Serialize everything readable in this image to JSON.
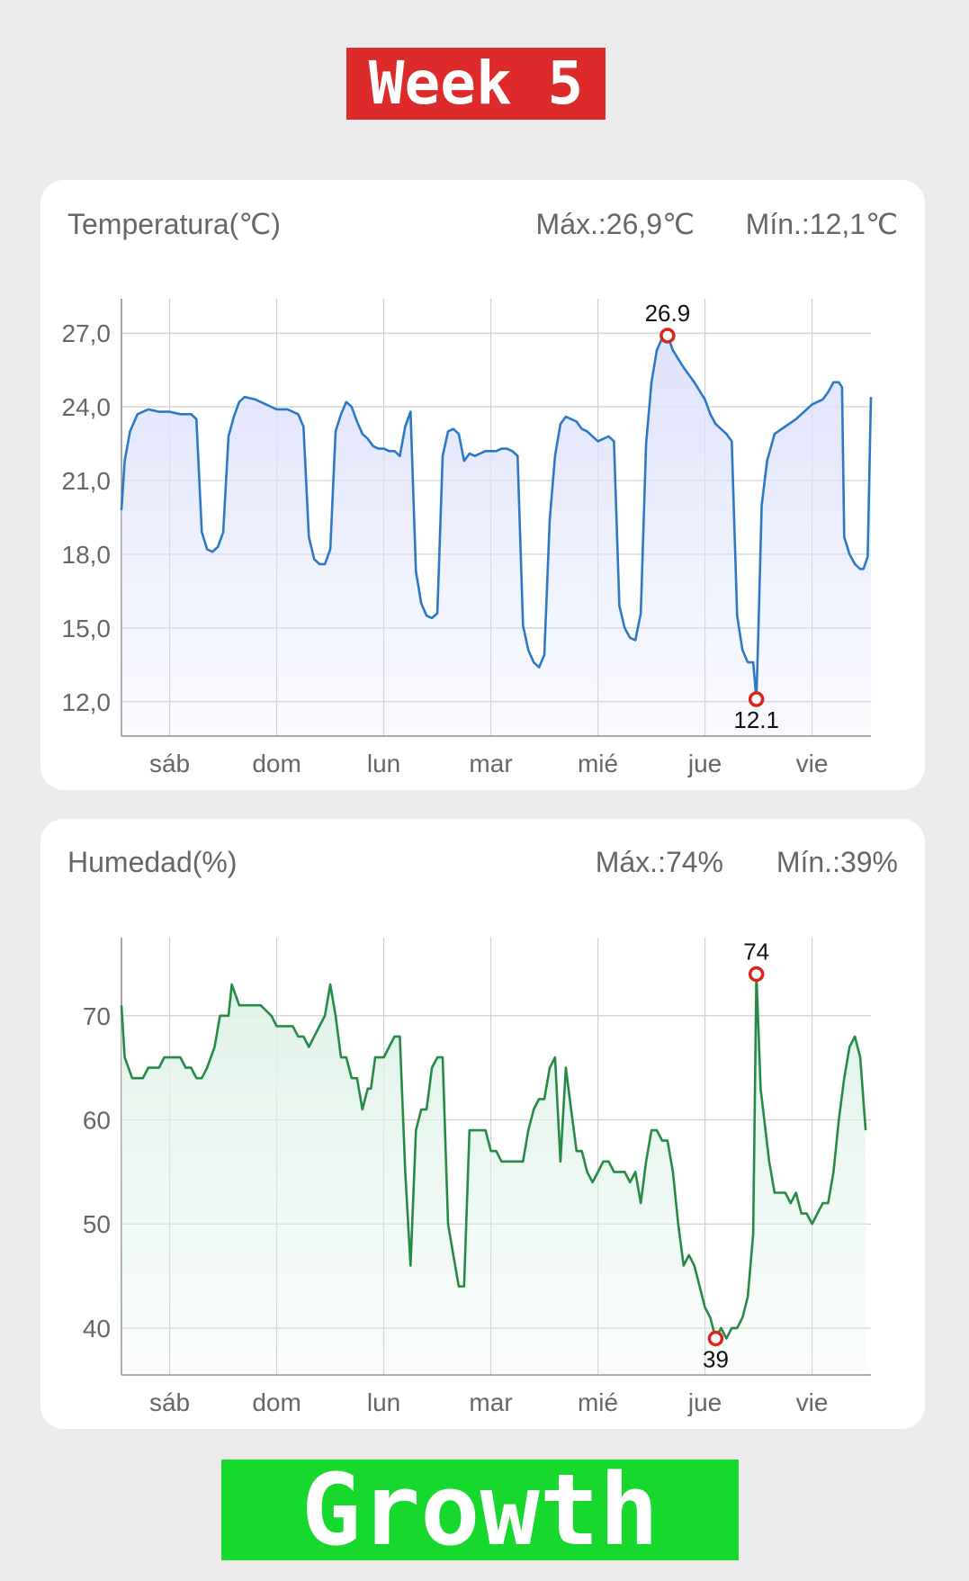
{
  "header": {
    "banner_text": "Week 5",
    "banner_color": "#dd2a2a"
  },
  "footer": {
    "banner_text": "Growth",
    "banner_color": "#17d82c"
  },
  "charts": {
    "temperature": {
      "title": "Temperatura(℃)",
      "max_label": "Máx.:26,9℃",
      "min_label": "Mín.:12,1℃"
    },
    "humidity": {
      "title": "Humedad(%)",
      "max_label": "Máx.:74%",
      "min_label": "Mín.:39%"
    }
  },
  "chart_data": [
    {
      "type": "area",
      "title": "Temperatura(℃)",
      "line_color": "#2b78c4",
      "fill_color": "#dfe3fb",
      "x_categories": [
        "sáb",
        "dom",
        "lun",
        "mar",
        "mié",
        "jue",
        "vie"
      ],
      "x_range": [
        -0.45,
        6.55
      ],
      "ylim": [
        10.6,
        28.4
      ],
      "y_ticks": [
        12,
        15,
        18,
        21,
        24,
        27
      ],
      "y_tick_labels": [
        "12,0",
        "15,0",
        "18,0",
        "21,0",
        "24,0",
        "27,0"
      ],
      "grid": true,
      "series": [
        {
          "points": [
            [
              -0.45,
              19.8
            ],
            [
              -0.42,
              21.8
            ],
            [
              -0.37,
              23.0
            ],
            [
              -0.3,
              23.7
            ],
            [
              -0.2,
              23.9
            ],
            [
              -0.1,
              23.8
            ],
            [
              0.0,
              23.8
            ],
            [
              0.1,
              23.7
            ],
            [
              0.2,
              23.7
            ],
            [
              0.25,
              23.5
            ],
            [
              0.3,
              18.9
            ],
            [
              0.35,
              18.2
            ],
            [
              0.4,
              18.1
            ],
            [
              0.45,
              18.3
            ],
            [
              0.5,
              18.9
            ],
            [
              0.55,
              22.8
            ],
            [
              0.6,
              23.6
            ],
            [
              0.65,
              24.2
            ],
            [
              0.7,
              24.4
            ],
            [
              0.8,
              24.3
            ],
            [
              0.9,
              24.1
            ],
            [
              1.0,
              23.9
            ],
            [
              1.1,
              23.9
            ],
            [
              1.2,
              23.7
            ],
            [
              1.25,
              23.2
            ],
            [
              1.3,
              18.7
            ],
            [
              1.35,
              17.8
            ],
            [
              1.4,
              17.6
            ],
            [
              1.45,
              17.6
            ],
            [
              1.5,
              18.2
            ],
            [
              1.55,
              23.0
            ],
            [
              1.6,
              23.7
            ],
            [
              1.65,
              24.2
            ],
            [
              1.7,
              24.0
            ],
            [
              1.75,
              23.4
            ],
            [
              1.8,
              22.9
            ],
            [
              1.85,
              22.7
            ],
            [
              1.9,
              22.4
            ],
            [
              1.95,
              22.3
            ],
            [
              2.0,
              22.3
            ],
            [
              2.05,
              22.2
            ],
            [
              2.1,
              22.2
            ],
            [
              2.15,
              22.0
            ],
            [
              2.2,
              23.2
            ],
            [
              2.25,
              23.8
            ],
            [
              2.3,
              17.3
            ],
            [
              2.35,
              16.0
            ],
            [
              2.4,
              15.5
            ],
            [
              2.45,
              15.4
            ],
            [
              2.5,
              15.6
            ],
            [
              2.55,
              22.0
            ],
            [
              2.6,
              23.0
            ],
            [
              2.65,
              23.1
            ],
            [
              2.7,
              22.9
            ],
            [
              2.75,
              21.8
            ],
            [
              2.8,
              22.1
            ],
            [
              2.85,
              22.0
            ],
            [
              2.9,
              22.1
            ],
            [
              2.95,
              22.2
            ],
            [
              3.0,
              22.2
            ],
            [
              3.05,
              22.2
            ],
            [
              3.1,
              22.3
            ],
            [
              3.15,
              22.3
            ],
            [
              3.2,
              22.2
            ],
            [
              3.25,
              22.0
            ],
            [
              3.3,
              15.1
            ],
            [
              3.35,
              14.1
            ],
            [
              3.4,
              13.6
            ],
            [
              3.45,
              13.4
            ],
            [
              3.5,
              13.9
            ],
            [
              3.55,
              19.4
            ],
            [
              3.6,
              22.0
            ],
            [
              3.65,
              23.3
            ],
            [
              3.7,
              23.6
            ],
            [
              3.8,
              23.4
            ],
            [
              3.85,
              23.1
            ],
            [
              3.9,
              23.0
            ],
            [
              3.95,
              22.8
            ],
            [
              4.0,
              22.6
            ],
            [
              4.1,
              22.8
            ],
            [
              4.15,
              22.6
            ],
            [
              4.2,
              15.9
            ],
            [
              4.25,
              15.0
            ],
            [
              4.3,
              14.6
            ],
            [
              4.35,
              14.5
            ],
            [
              4.4,
              15.6
            ],
            [
              4.45,
              22.5
            ],
            [
              4.5,
              25.0
            ],
            [
              4.55,
              26.3
            ],
            [
              4.6,
              26.8
            ],
            [
              4.65,
              26.9
            ],
            [
              4.7,
              26.3
            ],
            [
              4.8,
              25.6
            ],
            [
              4.9,
              25.0
            ],
            [
              5.0,
              24.3
            ],
            [
              5.05,
              23.7
            ],
            [
              5.1,
              23.3
            ],
            [
              5.2,
              22.9
            ],
            [
              5.25,
              22.6
            ],
            [
              5.3,
              15.5
            ],
            [
              5.35,
              14.1
            ],
            [
              5.4,
              13.6
            ],
            [
              5.45,
              13.6
            ],
            [
              5.48,
              12.1
            ],
            [
              5.5,
              15.0
            ],
            [
              5.53,
              20.0
            ],
            [
              5.58,
              21.8
            ],
            [
              5.65,
              22.9
            ],
            [
              5.75,
              23.2
            ],
            [
              5.85,
              23.5
            ],
            [
              5.95,
              23.9
            ],
            [
              6.0,
              24.1
            ],
            [
              6.05,
              24.2
            ],
            [
              6.1,
              24.3
            ],
            [
              6.15,
              24.6
            ],
            [
              6.2,
              25.0
            ],
            [
              6.25,
              25.0
            ],
            [
              6.28,
              24.8
            ],
            [
              6.3,
              18.7
            ],
            [
              6.35,
              18.0
            ],
            [
              6.4,
              17.6
            ],
            [
              6.45,
              17.4
            ],
            [
              6.48,
              17.4
            ],
            [
              6.52,
              17.9
            ],
            [
              6.55,
              24.4
            ]
          ],
          "markers": [
            {
              "x": 4.65,
              "y": 26.9,
              "label": "26.9",
              "position": "above"
            },
            {
              "x": 5.48,
              "y": 12.1,
              "label": "12.1",
              "position": "below"
            }
          ]
        }
      ]
    },
    {
      "type": "area",
      "title": "Humedad(%)",
      "line_color": "#258a45",
      "fill_color": "#dff2e8",
      "x_categories": [
        "sáb",
        "dom",
        "lun",
        "mar",
        "mié",
        "jue",
        "vie"
      ],
      "x_range": [
        -0.45,
        6.55
      ],
      "ylim": [
        35.5,
        77.5
      ],
      "y_ticks": [
        40,
        50,
        60,
        70
      ],
      "y_tick_labels": [
        "40",
        "50",
        "60",
        "70"
      ],
      "grid": true,
      "series": [
        {
          "points": [
            [
              -0.45,
              71
            ],
            [
              -0.42,
              66
            ],
            [
              -0.35,
              64
            ],
            [
              -0.3,
              64
            ],
            [
              -0.25,
              64
            ],
            [
              -0.2,
              65
            ],
            [
              -0.1,
              65
            ],
            [
              -0.05,
              66
            ],
            [
              0.1,
              66
            ],
            [
              0.15,
              65
            ],
            [
              0.2,
              65
            ],
            [
              0.25,
              64
            ],
            [
              0.3,
              64
            ],
            [
              0.35,
              65
            ],
            [
              0.42,
              67
            ],
            [
              0.47,
              70
            ],
            [
              0.55,
              70
            ],
            [
              0.58,
              73
            ],
            [
              0.65,
              71
            ],
            [
              0.75,
              71
            ],
            [
              0.85,
              71
            ],
            [
              0.95,
              70
            ],
            [
              1.0,
              69
            ],
            [
              1.05,
              69
            ],
            [
              1.15,
              69
            ],
            [
              1.2,
              68
            ],
            [
              1.25,
              68
            ],
            [
              1.3,
              67
            ],
            [
              1.35,
              68
            ],
            [
              1.4,
              69
            ],
            [
              1.45,
              70
            ],
            [
              1.5,
              73
            ],
            [
              1.55,
              70
            ],
            [
              1.6,
              66
            ],
            [
              1.65,
              66
            ],
            [
              1.7,
              64
            ],
            [
              1.75,
              64
            ],
            [
              1.8,
              61
            ],
            [
              1.85,
              63
            ],
            [
              1.88,
              63
            ],
            [
              1.92,
              66
            ],
            [
              2.0,
              66
            ],
            [
              2.05,
              67
            ],
            [
              2.1,
              68
            ],
            [
              2.15,
              68
            ],
            [
              2.2,
              55
            ],
            [
              2.25,
              46
            ],
            [
              2.3,
              59
            ],
            [
              2.35,
              61
            ],
            [
              2.4,
              61
            ],
            [
              2.45,
              65
            ],
            [
              2.5,
              66
            ],
            [
              2.55,
              66
            ],
            [
              2.6,
              50
            ],
            [
              2.65,
              47
            ],
            [
              2.7,
              44
            ],
            [
              2.75,
              44
            ],
            [
              2.8,
              59
            ],
            [
              2.85,
              59
            ],
            [
              2.9,
              59
            ],
            [
              2.95,
              59
            ],
            [
              3.0,
              57
            ],
            [
              3.05,
              57
            ],
            [
              3.1,
              56
            ],
            [
              3.15,
              56
            ],
            [
              3.2,
              56
            ],
            [
              3.25,
              56
            ],
            [
              3.3,
              56
            ],
            [
              3.35,
              59
            ],
            [
              3.4,
              61
            ],
            [
              3.45,
              62
            ],
            [
              3.5,
              62
            ],
            [
              3.55,
              65
            ],
            [
              3.6,
              66
            ],
            [
              3.65,
              56
            ],
            [
              3.7,
              65
            ],
            [
              3.75,
              61
            ],
            [
              3.8,
              57
            ],
            [
              3.85,
              57
            ],
            [
              3.9,
              55
            ],
            [
              3.95,
              54
            ],
            [
              4.0,
              55
            ],
            [
              4.05,
              56
            ],
            [
              4.1,
              56
            ],
            [
              4.15,
              55
            ],
            [
              4.2,
              55
            ],
            [
              4.25,
              55
            ],
            [
              4.3,
              54
            ],
            [
              4.35,
              55
            ],
            [
              4.4,
              52
            ],
            [
              4.45,
              56
            ],
            [
              4.5,
              59
            ],
            [
              4.55,
              59
            ],
            [
              4.6,
              58
            ],
            [
              4.65,
              58
            ],
            [
              4.7,
              55
            ],
            [
              4.75,
              50
            ],
            [
              4.8,
              46
            ],
            [
              4.85,
              47
            ],
            [
              4.9,
              46
            ],
            [
              4.95,
              44
            ],
            [
              5.0,
              42
            ],
            [
              5.05,
              41
            ],
            [
              5.1,
              39
            ],
            [
              5.15,
              40
            ],
            [
              5.2,
              39
            ],
            [
              5.25,
              40
            ],
            [
              5.3,
              40
            ],
            [
              5.35,
              41
            ],
            [
              5.4,
              43
            ],
            [
              5.45,
              49
            ],
            [
              5.48,
              74
            ],
            [
              5.52,
              63
            ],
            [
              5.6,
              56
            ],
            [
              5.65,
              53
            ],
            [
              5.7,
              53
            ],
            [
              5.75,
              53
            ],
            [
              5.8,
              52
            ],
            [
              5.85,
              53
            ],
            [
              5.9,
              51
            ],
            [
              5.95,
              51
            ],
            [
              6.0,
              50
            ],
            [
              6.05,
              51
            ],
            [
              6.1,
              52
            ],
            [
              6.15,
              52
            ],
            [
              6.2,
              55
            ],
            [
              6.25,
              60
            ],
            [
              6.3,
              64
            ],
            [
              6.35,
              67
            ],
            [
              6.4,
              68
            ],
            [
              6.45,
              66
            ],
            [
              6.5,
              59
            ]
          ],
          "markers": [
            {
              "x": 5.48,
              "y": 74,
              "label": "74",
              "position": "above"
            },
            {
              "x": 5.1,
              "y": 39,
              "label": "39",
              "position": "below"
            }
          ]
        }
      ]
    }
  ]
}
